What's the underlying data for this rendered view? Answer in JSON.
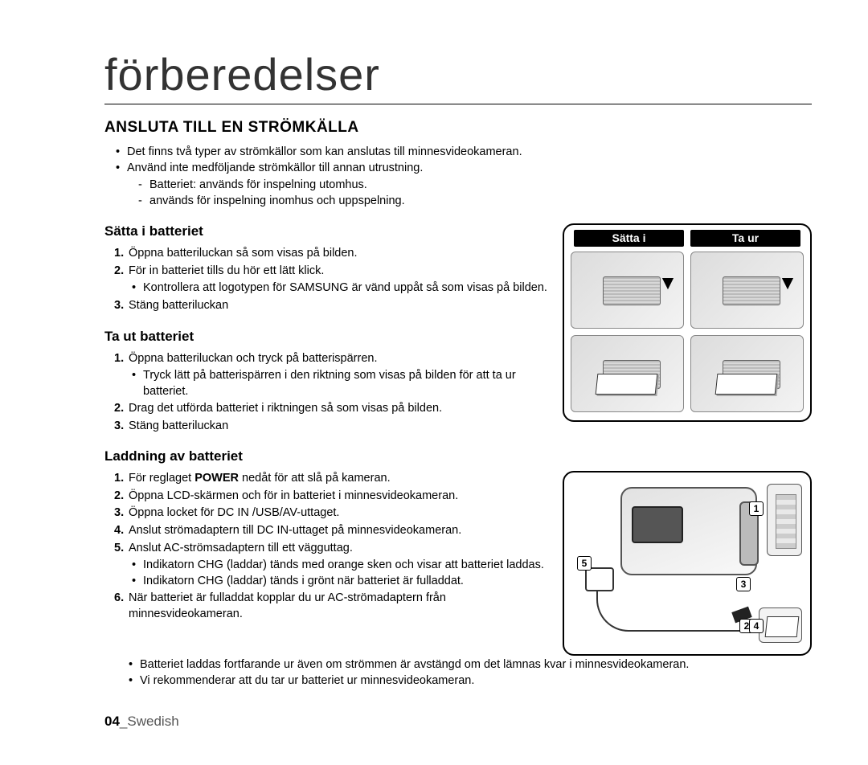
{
  "chapter_title": "förberedelser",
  "section_heading": "ANSLUTA TILL EN STRÖMKÄLLA",
  "intro": {
    "items": [
      "Det finns två typer av strömkällor som kan anslutas till minnesvideokameran.",
      "Använd inte medföljande strömkällor till annan utrustning."
    ],
    "sub": [
      "Batteriet: används för inspelning utomhus.",
      "används för inspelning inomhus och uppspelning."
    ]
  },
  "battery_figure": {
    "tab_insert": "Sätta i",
    "tab_eject": "Ta ur"
  },
  "insert": {
    "heading": "Sätta i batteriet",
    "steps": [
      {
        "text": "Öppna batteriluckan så som visas på bilden."
      },
      {
        "text": "För in batteriet tills du hör ett lätt klick.",
        "bullets": [
          "Kontrollera att logotypen för SAMSUNG är vänd uppåt så som visas på bilden."
        ]
      },
      {
        "text": "Stäng batteriluckan"
      }
    ]
  },
  "remove": {
    "heading": "Ta ut batteriet",
    "steps": [
      {
        "text": "Öppna batteriluckan och tryck på batterispärren.",
        "bullets": [
          "Tryck lätt på batterispärren i den riktning som visas på bilden för att ta ur batteriet."
        ]
      },
      {
        "text": "Drag det utförda batteriet i riktningen så som visas på bilden."
      },
      {
        "text": "Stäng batteriluckan"
      }
    ]
  },
  "charge": {
    "heading": "Laddning av batteriet",
    "power_word": "POWER",
    "steps": [
      {
        "pre": "För reglaget ",
        "post": " nedåt för att slå på kameran."
      },
      {
        "text": "Öppna LCD-skärmen och för in batteriet i minnesvideokameran."
      },
      {
        "text": "Öppna locket för DC IN /USB/AV-uttaget."
      },
      {
        "text": "Anslut strömadaptern till DC IN-uttaget på minnesvideokameran."
      },
      {
        "text": "Anslut AC-strömsadaptern till ett vägguttag.",
        "bullets": [
          "Indikatorn CHG (laddar) tänds med orange sken och visar att batteriet laddas.",
          "Indikatorn CHG (laddar) tänds i grönt när batteriet är fulladdat."
        ]
      },
      {
        "text": "När batteriet är fulladdat kopplar du ur AC-strömadaptern från minnesvideokameran."
      }
    ],
    "trail_notes": [
      "Batteriet laddas fortfarande ur även om strömmen är avstängd om det lämnas kvar i minnesvideokameran.",
      "Vi rekommenderar att du tar ur batteriet ur minnesvideokameran."
    ],
    "callouts": {
      "n1": "1",
      "n2": "2",
      "n3": "3",
      "n4": "4",
      "n5": "5"
    }
  },
  "page": {
    "number": "04",
    "sep": "_",
    "lang": "Swedish"
  }
}
